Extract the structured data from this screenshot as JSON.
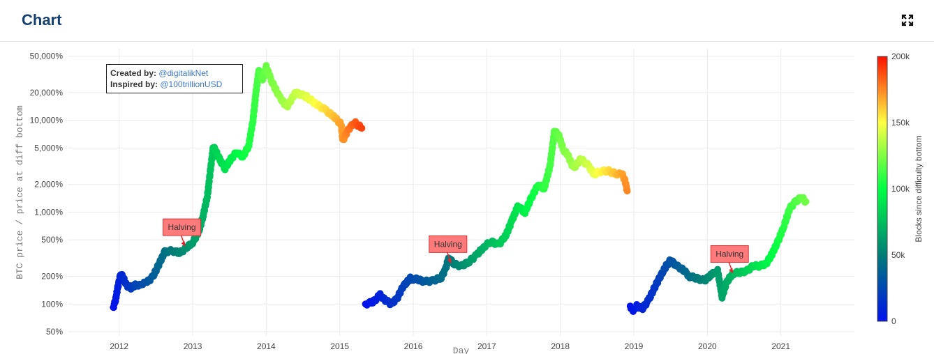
{
  "header": {
    "title": "Chart",
    "expand_icon": "expand-icon"
  },
  "credits": {
    "created_label": "Created by:",
    "created_value": "@digitalikNet",
    "inspired_label": "Inspired by:",
    "inspired_value": "@100trillionUSD"
  },
  "chart_data": {
    "type": "scatter",
    "xlabel": "Day",
    "ylabel": "BTC price / price at diff bottom",
    "yscale": "log",
    "ylim": [
      45,
      60000
    ],
    "xlim": [
      2011.3,
      2022.0
    ],
    "x_ticks": [
      "2012",
      "2013",
      "2014",
      "2015",
      "2016",
      "2017",
      "2018",
      "2019",
      "2020",
      "2021"
    ],
    "y_ticks": [
      {
        "value": 50,
        "label": "50%"
      },
      {
        "value": 100,
        "label": "100%"
      },
      {
        "value": 200,
        "label": "200%"
      },
      {
        "value": 500,
        "label": "500%"
      },
      {
        "value": 1000,
        "label": "1,000%"
      },
      {
        "value": 2000,
        "label": "2,000%"
      },
      {
        "value": 5000,
        "label": "5,000%"
      },
      {
        "value": 10000,
        "label": "10,000%"
      },
      {
        "value": 20000,
        "label": "20,000%"
      },
      {
        "value": 50000,
        "label": "50,000%"
      }
    ],
    "colorbar": {
      "title": "Blocks since difficulty bottom",
      "min": 0,
      "max": 200000,
      "ticks": [
        {
          "value": 0,
          "label": "0"
        },
        {
          "value": 50000,
          "label": "50k"
        },
        {
          "value": 100000,
          "label": "100k"
        },
        {
          "value": 150000,
          "label": "150k"
        },
        {
          "value": 200000,
          "label": "200k"
        }
      ],
      "colors": [
        "#0011ee",
        "#007c77",
        "#00ff44",
        "#ffff44",
        "#ff1100"
      ]
    },
    "series": [
      {
        "points": [
          [
            2011.92,
            92,
            0
          ],
          [
            2011.95,
            110,
            3000
          ],
          [
            2011.98,
            150,
            6000
          ],
          [
            2012.02,
            215,
            9000
          ],
          [
            2012.06,
            190,
            12000
          ],
          [
            2012.1,
            160,
            15000
          ],
          [
            2012.16,
            150,
            19000
          ],
          [
            2012.22,
            160,
            23000
          ],
          [
            2012.3,
            165,
            27000
          ],
          [
            2012.38,
            172,
            31000
          ],
          [
            2012.46,
            200,
            35000
          ],
          [
            2012.54,
            270,
            40000
          ],
          [
            2012.62,
            370,
            44000
          ],
          [
            2012.72,
            380,
            49000
          ],
          [
            2012.82,
            360,
            53000
          ],
          [
            2012.9,
            400,
            57000
          ],
          [
            2013.0,
            470,
            62000
          ],
          [
            2013.08,
            600,
            66000
          ],
          [
            2013.14,
            900,
            70000
          ],
          [
            2013.2,
            1500,
            74000
          ],
          [
            2013.24,
            2800,
            77000
          ],
          [
            2013.28,
            5200,
            80000
          ],
          [
            2013.32,
            4500,
            83000
          ],
          [
            2013.38,
            3600,
            86000
          ],
          [
            2013.44,
            3000,
            89000
          ],
          [
            2013.52,
            3800,
            93000
          ],
          [
            2013.6,
            4500,
            97000
          ],
          [
            2013.68,
            4000,
            101000
          ],
          [
            2013.76,
            5200,
            105000
          ],
          [
            2013.82,
            10000,
            108000
          ],
          [
            2013.86,
            20000,
            112000
          ],
          [
            2013.9,
            35000,
            115000
          ],
          [
            2013.95,
            28000,
            118000
          ],
          [
            2014.0,
            38000,
            121000
          ],
          [
            2014.08,
            26000,
            124000
          ],
          [
            2014.18,
            18000,
            128000
          ],
          [
            2014.28,
            14000,
            133000
          ],
          [
            2014.4,
            20000,
            138000
          ],
          [
            2014.55,
            18000,
            144000
          ],
          [
            2014.68,
            15000,
            150000
          ],
          [
            2014.8,
            13000,
            157000
          ],
          [
            2014.92,
            11000,
            163000
          ],
          [
            2015.02,
            9000,
            170000
          ],
          [
            2015.04,
            6000,
            172000
          ],
          [
            2015.12,
            8000,
            178000
          ],
          [
            2015.2,
            9500,
            184000
          ],
          [
            2015.3,
            8200,
            190000
          ]
        ]
      },
      {
        "points": [
          [
            2015.35,
            100,
            0
          ],
          [
            2015.45,
            105,
            4000
          ],
          [
            2015.55,
            125,
            8000
          ],
          [
            2015.62,
            110,
            11000
          ],
          [
            2015.7,
            100,
            14000
          ],
          [
            2015.78,
            115,
            17000
          ],
          [
            2015.86,
            155,
            21000
          ],
          [
            2015.96,
            190,
            25000
          ],
          [
            2016.06,
            185,
            29000
          ],
          [
            2016.16,
            175,
            33000
          ],
          [
            2016.28,
            180,
            38000
          ],
          [
            2016.38,
            195,
            42000
          ],
          [
            2016.44,
            240,
            45000
          ],
          [
            2016.48,
            320,
            47000
          ],
          [
            2016.56,
            270,
            51000
          ],
          [
            2016.66,
            260,
            56000
          ],
          [
            2016.76,
            290,
            61000
          ],
          [
            2016.86,
            340,
            66000
          ],
          [
            2016.96,
            420,
            70000
          ],
          [
            2017.06,
            480,
            74000
          ],
          [
            2017.16,
            440,
            78000
          ],
          [
            2017.26,
            560,
            82000
          ],
          [
            2017.34,
            800,
            86000
          ],
          [
            2017.42,
            1150,
            90000
          ],
          [
            2017.52,
            1000,
            95000
          ],
          [
            2017.6,
            1400,
            100000
          ],
          [
            2017.7,
            2000,
            105000
          ],
          [
            2017.78,
            1800,
            109000
          ],
          [
            2017.86,
            3200,
            113000
          ],
          [
            2017.92,
            7600,
            117000
          ],
          [
            2017.98,
            6800,
            120000
          ],
          [
            2018.04,
            4800,
            124000
          ],
          [
            2018.1,
            4200,
            127000
          ],
          [
            2018.18,
            3000,
            131000
          ],
          [
            2018.28,
            3800,
            136000
          ],
          [
            2018.38,
            3200,
            141000
          ],
          [
            2018.46,
            2600,
            146000
          ],
          [
            2018.56,
            2800,
            152000
          ],
          [
            2018.66,
            2800,
            158000
          ],
          [
            2018.76,
            2600,
            164000
          ],
          [
            2018.84,
            2600,
            169000
          ],
          [
            2018.88,
            2200,
            172000
          ],
          [
            2018.91,
            1700,
            175000
          ]
        ]
      },
      {
        "points": [
          [
            2018.95,
            95,
            0
          ],
          [
            2018.99,
            85,
            2000
          ],
          [
            2019.04,
            95,
            5000
          ],
          [
            2019.12,
            90,
            9000
          ],
          [
            2019.2,
            110,
            13000
          ],
          [
            2019.28,
            150,
            17000
          ],
          [
            2019.36,
            200,
            22000
          ],
          [
            2019.44,
            260,
            27000
          ],
          [
            2019.5,
            300,
            30000
          ],
          [
            2019.58,
            260,
            34000
          ],
          [
            2019.66,
            240,
            38000
          ],
          [
            2019.76,
            200,
            43000
          ],
          [
            2019.86,
            190,
            48000
          ],
          [
            2019.96,
            180,
            53000
          ],
          [
            2020.06,
            210,
            58000
          ],
          [
            2020.14,
            230,
            62000
          ],
          [
            2020.2,
            120,
            65000
          ],
          [
            2020.26,
            170,
            68000
          ],
          [
            2020.34,
            215,
            72000
          ],
          [
            2020.44,
            220,
            77000
          ],
          [
            2020.54,
            230,
            82000
          ],
          [
            2020.62,
            260,
            86000
          ],
          [
            2020.72,
            260,
            91000
          ],
          [
            2020.8,
            275,
            95000
          ],
          [
            2020.88,
            350,
            99000
          ],
          [
            2020.96,
            480,
            103000
          ],
          [
            2021.04,
            700,
            107000
          ],
          [
            2021.12,
            1100,
            111000
          ],
          [
            2021.2,
            1300,
            115000
          ],
          [
            2021.28,
            1450,
            119000
          ],
          [
            2021.34,
            1300,
            122000
          ]
        ]
      }
    ],
    "annotations": [
      {
        "text": "Halving",
        "x": 2012.9,
        "y": 420
      },
      {
        "text": "Halving",
        "x": 2016.52,
        "y": 275
      },
      {
        "text": "Halving",
        "x": 2020.35,
        "y": 215
      }
    ]
  }
}
